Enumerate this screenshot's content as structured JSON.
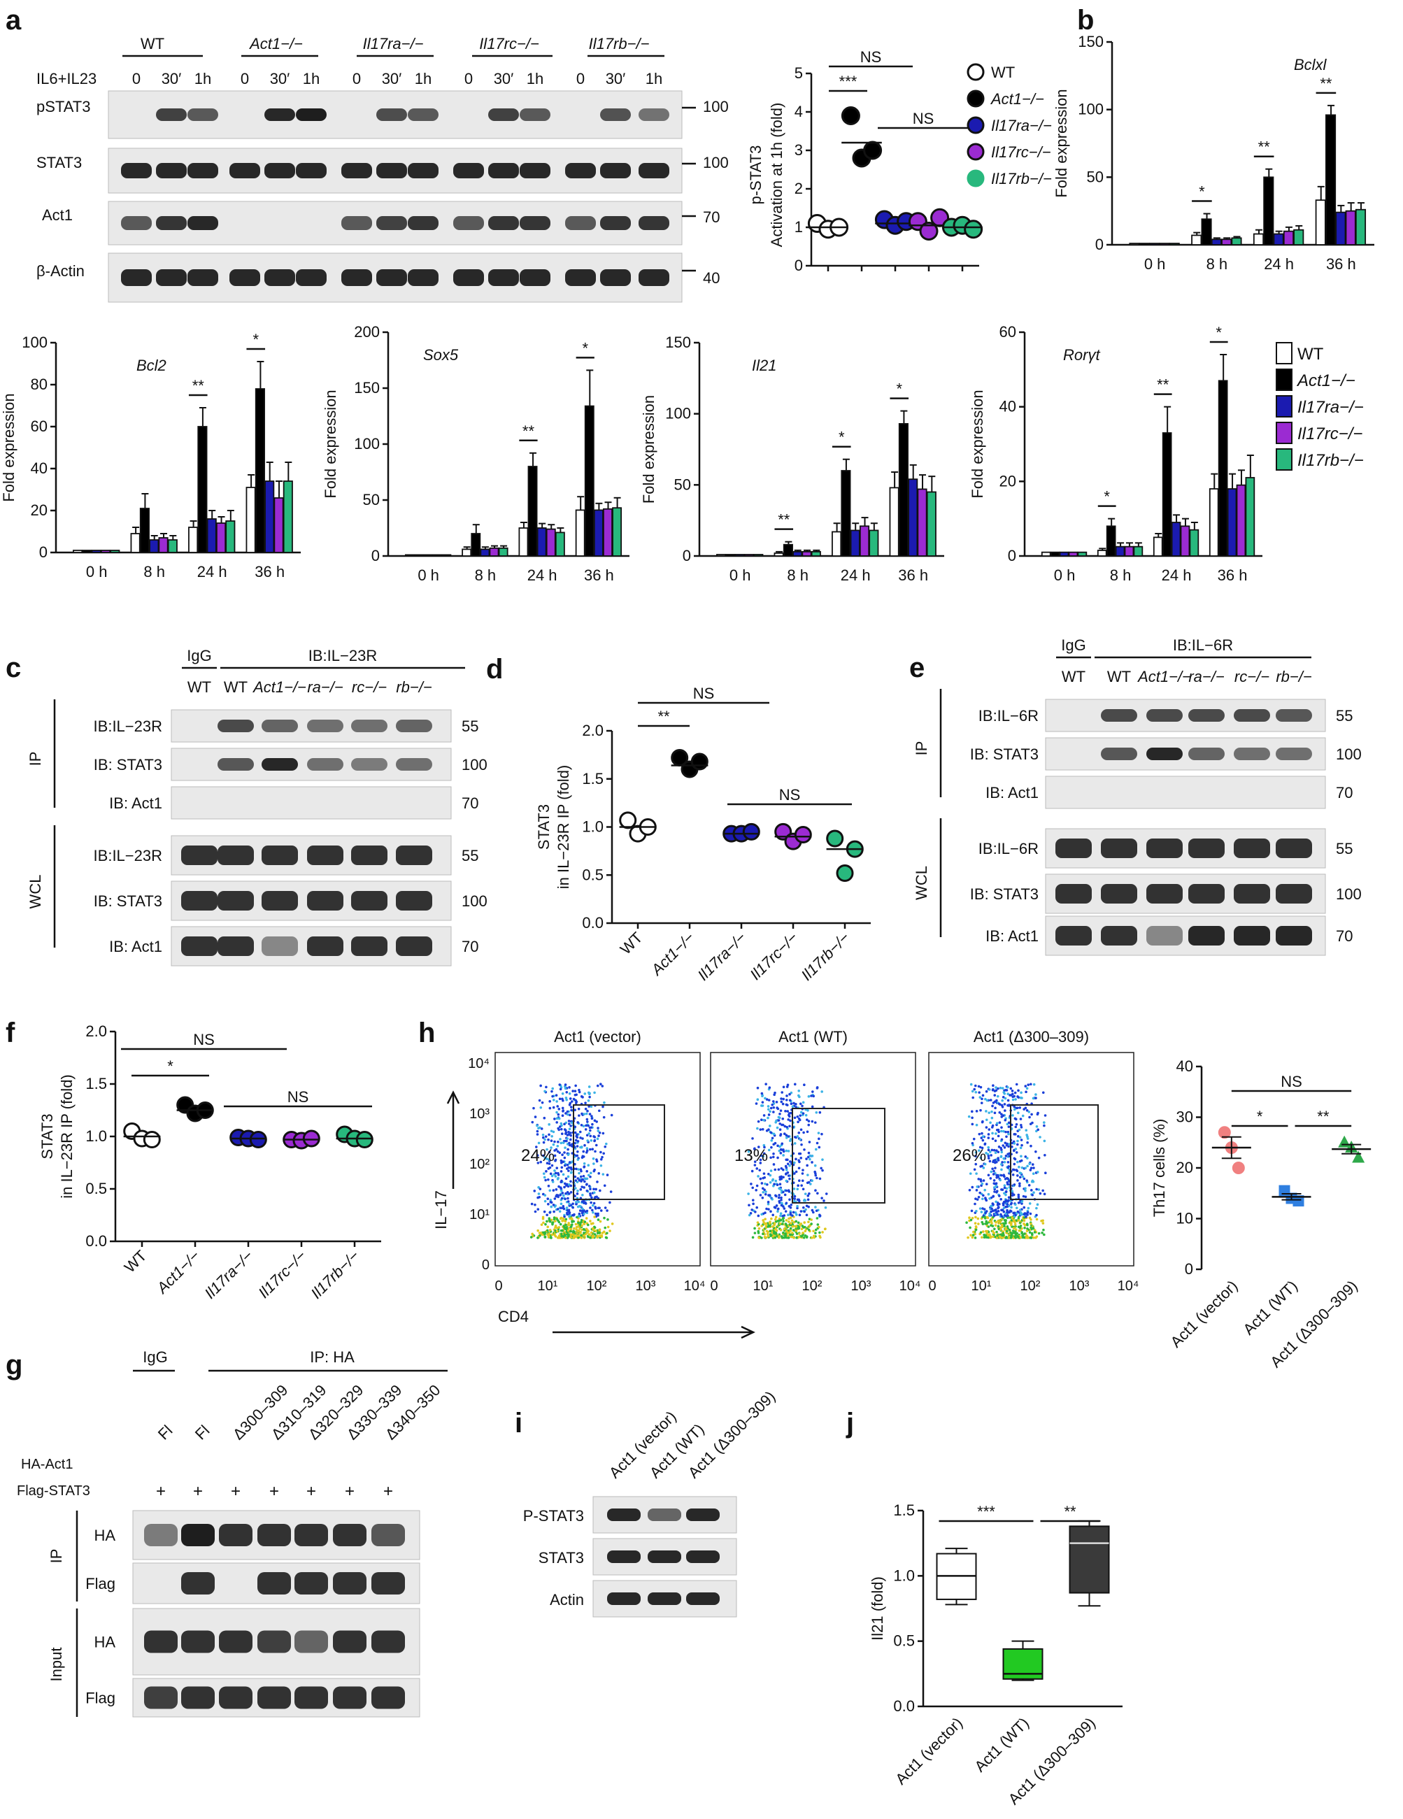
{
  "colors": {
    "WT": "#ffffff",
    "Act1": "#000000",
    "Il17ra": "#1b1bb0",
    "Il17rc": "#9b2bd2",
    "Il17rb": "#28b87d",
    "vector": "#f08080",
    "act1wt": "#2f7fe0",
    "delta": "#2ea84a",
    "box_vector": "#ffffff",
    "box_wt": "#22c922",
    "box_delta": "#3a3a3a"
  },
  "panel_a": {
    "letter": "a",
    "groups": [
      "WT",
      "Act1−/−",
      "Il17ra−/−",
      "Il17rc−/−",
      "Il17rb−/−"
    ],
    "treatment": "IL6+IL23",
    "times": [
      "0",
      "30′",
      "1h"
    ],
    "blot_rows": [
      "pSTAT3",
      "STAT3",
      "Act1",
      "β-Actin"
    ],
    "mw": [
      "100",
      "100",
      "70",
      "40"
    ]
  },
  "panel_a_scatter": {
    "ylabel1": "p-STAT3",
    "ylabel2": "Activation at 1h (fold)",
    "yticks": [
      "0",
      "1",
      "2",
      "3",
      "4",
      "5"
    ],
    "sig": [
      "***",
      "NS",
      "NS"
    ],
    "legend": [
      "WT",
      "Act1−/−",
      "Il17ra−/−",
      "Il17rc−/−",
      "Il17rb−/−"
    ]
  },
  "panel_b": {
    "letter": "b",
    "title": "Bclxl",
    "ylabel": "Fold expression",
    "yticks": [
      "0",
      "50",
      "100",
      "150"
    ],
    "sig": [
      "*",
      "**",
      "**"
    ]
  },
  "timepoints": [
    "0 h",
    "8 h",
    "24 h",
    "36 h"
  ],
  "row2": {
    "bcl2": {
      "title": "Bcl2",
      "ylabel": "Fold expression",
      "yticks": [
        "0",
        "20",
        "40",
        "60",
        "80",
        "100"
      ],
      "sig": [
        "**",
        "*"
      ]
    },
    "sox5": {
      "title": "Sox5",
      "ylabel": "Fold expression",
      "yticks": [
        "0",
        "50",
        "100",
        "150",
        "200"
      ],
      "sig": [
        "**",
        "*"
      ]
    },
    "il21": {
      "title": "Il21",
      "ylabel": "Fold expression",
      "yticks": [
        "0",
        "50",
        "100",
        "150"
      ],
      "sig": [
        "**",
        "*",
        "*"
      ]
    },
    "rorgt": {
      "title": "Rorγt",
      "ylabel": "Fold expression",
      "yticks": [
        "0",
        "20",
        "40",
        "60"
      ],
      "sig": [
        "*",
        "**",
        "*"
      ]
    },
    "legend": [
      "WT",
      "Act1−/−",
      "Il17ra−/−",
      "Il17rc−/−",
      "Il17rb−/−"
    ]
  },
  "panel_c": {
    "letter": "c",
    "head1": "IgG",
    "head2": "IB:IL−23R",
    "lanes": [
      "WT",
      "WT",
      "Act1−/−",
      "ra−/−",
      "rc−/−",
      "rb−/−"
    ],
    "side": [
      "IP",
      "WCL"
    ],
    "rows": [
      "IB:IL−23R",
      "IB: STAT3",
      "IB: Act1",
      "IB:IL−23R",
      "IB: STAT3",
      "IB: Act1"
    ],
    "mw": [
      "55",
      "100",
      "70",
      "55",
      "100",
      "70"
    ]
  },
  "panel_d": {
    "letter": "d",
    "ylabel1": "STAT3",
    "ylabel2": "in IL−23R IP (fold)",
    "yticks": [
      "0.0",
      "0.5",
      "1.0",
      "1.5",
      "2.0"
    ],
    "xlabels": [
      "WT",
      "Act1−/−",
      "Il17ra−/−",
      "Il17rc−/−",
      "Il17rb−/−"
    ],
    "sig": [
      "**",
      "NS",
      "NS"
    ]
  },
  "panel_e": {
    "letter": "e",
    "head1": "IgG",
    "head2": "IB:IL−6R",
    "lanes": [
      "WT",
      "WT",
      "Act1−/−",
      "ra−/−",
      "rc−/−",
      "rb−/−"
    ],
    "side": [
      "IP",
      "WCL"
    ],
    "rows": [
      "IB:IL−6R",
      "IB: STAT3",
      "IB: Act1",
      "IB:IL−6R",
      "IB: STAT3",
      "IB: Act1"
    ],
    "mw": [
      "55",
      "100",
      "70",
      "55",
      "100",
      "70"
    ]
  },
  "panel_f": {
    "letter": "f",
    "ylabel1": "STAT3",
    "ylabel2": "in IL−23R IP (fold)",
    "yticks": [
      "0.0",
      "0.5",
      "1.0",
      "1.5",
      "2.0"
    ],
    "xlabels": [
      "WT",
      "Act1−/−",
      "Il17ra−/−",
      "Il17rc−/−",
      "Il17rb−/−"
    ],
    "sig": [
      "*",
      "NS",
      "NS"
    ]
  },
  "panel_h": {
    "letter": "h",
    "titles": [
      "Act1 (vector)",
      "Act1 (WT)",
      "Act1 (Δ300–309)"
    ],
    "percents": [
      "24%",
      "13%",
      "26%"
    ],
    "ylabel": "IL−17",
    "xlabel": "CD4",
    "yticks": [
      "0",
      "10¹",
      "10²",
      "10³",
      "10⁴"
    ],
    "xticks": [
      "0",
      "10¹",
      "10²",
      "10³",
      "10⁴"
    ]
  },
  "panel_h_scatter": {
    "ylabel": "Th17 cells (%)",
    "yticks": [
      "0",
      "10",
      "20",
      "30",
      "40"
    ],
    "xlabels": [
      "Act1 (vector)",
      "Act1 (WT)",
      "Act1 (Δ300–309)"
    ],
    "sig": [
      "NS",
      "*",
      "**"
    ]
  },
  "panel_g": {
    "letter": "g",
    "head1": "IgG",
    "head2": "IP: HA",
    "lanes": [
      "Fl",
      "Fl",
      "Δ300–309",
      "Δ310–319",
      "Δ320–329",
      "Δ330–339",
      "Δ340–350"
    ],
    "row_labels": [
      "HA-Act1",
      "Flag-STAT3"
    ],
    "plus": "+",
    "side": [
      "IP",
      "Input"
    ],
    "rows": [
      "HA",
      "Flag",
      "HA",
      "Flag"
    ]
  },
  "panel_i": {
    "letter": "i",
    "lanes": [
      "Act1 (vector)",
      "Act1 (WT)",
      "Act1 (Δ300–309)"
    ],
    "rows": [
      "P-STAT3",
      "STAT3",
      "Actin"
    ]
  },
  "panel_j": {
    "letter": "j",
    "ylabel": "Il21 (fold)",
    "yticks": [
      "0.0",
      "0.5",
      "1.0",
      "1.5"
    ],
    "xlabels": [
      "Act1 (vector)",
      "Act1 (WT)",
      "Act1 (Δ300–309)"
    ],
    "sig": [
      "***",
      "**"
    ]
  },
  "chart_data": [
    {
      "type": "scatter",
      "title": "p-STAT3 activation at 1h (fold)",
      "categories": [
        "WT",
        "Act1−/−",
        "Il17ra−/−",
        "Il17rc−/−",
        "Il17rb−/−"
      ],
      "values": [
        [
          1.1,
          0.95,
          1.0
        ],
        [
          3.9,
          2.8,
          3.0
        ],
        [
          1.2,
          1.05,
          1.15
        ],
        [
          1.15,
          0.9,
          1.25
        ],
        [
          1.0,
          1.05,
          0.95
        ]
      ],
      "means": [
        1.0,
        3.2,
        1.1,
        1.05,
        1.0
      ],
      "ylim": [
        0,
        5
      ]
    },
    {
      "type": "bar",
      "title": "Bclxl",
      "ylabel": "Fold expression",
      "ylim": [
        0,
        150
      ],
      "categories": [
        "0 h",
        "8 h",
        "24 h",
        "36 h"
      ],
      "series": [
        {
          "name": "WT",
          "values": [
            1,
            7,
            8,
            33
          ],
          "err": [
            0,
            2,
            3,
            10
          ]
        },
        {
          "name": "Act1−/−",
          "values": [
            1,
            19,
            50,
            96
          ],
          "err": [
            0,
            4,
            6,
            7
          ]
        },
        {
          "name": "Il17ra−/−",
          "values": [
            1,
            4,
            8,
            24
          ],
          "err": [
            0,
            1,
            2,
            5
          ]
        },
        {
          "name": "Il17rc−/−",
          "values": [
            1,
            4,
            10,
            25
          ],
          "err": [
            0,
            1,
            3,
            6
          ]
        },
        {
          "name": "Il17rb−/−",
          "values": [
            1,
            5,
            11,
            26
          ],
          "err": [
            0,
            1,
            3,
            5
          ]
        }
      ]
    },
    {
      "type": "bar",
      "title": "Bcl2",
      "ylabel": "Fold expression",
      "ylim": [
        0,
        100
      ],
      "categories": [
        "0 h",
        "8 h",
        "24 h",
        "36 h"
      ],
      "series": [
        {
          "name": "WT",
          "values": [
            1,
            9,
            12,
            31
          ],
          "err": [
            0,
            3,
            3,
            6
          ]
        },
        {
          "name": "Act1−/−",
          "values": [
            1,
            21,
            60,
            78
          ],
          "err": [
            0,
            7,
            9,
            13
          ]
        },
        {
          "name": "Il17ra−/−",
          "values": [
            1,
            6,
            16,
            34
          ],
          "err": [
            0,
            2,
            4,
            9
          ]
        },
        {
          "name": "Il17rc−/−",
          "values": [
            1,
            7,
            14,
            26
          ],
          "err": [
            0,
            2,
            3,
            8
          ]
        },
        {
          "name": "Il17rb−/−",
          "values": [
            1,
            6,
            15,
            34
          ],
          "err": [
            0,
            2,
            5,
            9
          ]
        }
      ]
    },
    {
      "type": "bar",
      "title": "Sox5",
      "ylabel": "Fold expression",
      "ylim": [
        0,
        200
      ],
      "categories": [
        "0 h",
        "8 h",
        "24 h",
        "36 h"
      ],
      "series": [
        {
          "name": "WT",
          "values": [
            1,
            6,
            25,
            41
          ],
          "err": [
            0,
            2,
            5,
            12
          ]
        },
        {
          "name": "Act1−/−",
          "values": [
            1,
            20,
            80,
            134
          ],
          "err": [
            0,
            8,
            12,
            32
          ]
        },
        {
          "name": "Il17ra−/−",
          "values": [
            1,
            6,
            25,
            41
          ],
          "err": [
            0,
            2,
            4,
            6
          ]
        },
        {
          "name": "Il17rc−/−",
          "values": [
            1,
            7,
            24,
            42
          ],
          "err": [
            0,
            2,
            4,
            6
          ]
        },
        {
          "name": "Il17rb−/−",
          "values": [
            1,
            7,
            21,
            43
          ],
          "err": [
            0,
            2,
            4,
            9
          ]
        }
      ]
    },
    {
      "type": "bar",
      "title": "Il21",
      "ylabel": "Fold expression",
      "ylim": [
        0,
        150
      ],
      "categories": [
        "0 h",
        "8 h",
        "24 h",
        "36 h"
      ],
      "series": [
        {
          "name": "WT",
          "values": [
            1,
            2,
            17,
            48
          ],
          "err": [
            0,
            1,
            6,
            11
          ]
        },
        {
          "name": "Act1−/−",
          "values": [
            1,
            8,
            60,
            93
          ],
          "err": [
            0,
            2,
            8,
            9
          ]
        },
        {
          "name": "Il17ra−/−",
          "values": [
            1,
            3,
            18,
            54
          ],
          "err": [
            0,
            1,
            5,
            10
          ]
        },
        {
          "name": "Il17rc−/−",
          "values": [
            1,
            3,
            21,
            47
          ],
          "err": [
            0,
            1,
            6,
            10
          ]
        },
        {
          "name": "Il17rb−/−",
          "values": [
            1,
            3,
            18,
            45
          ],
          "err": [
            0,
            1,
            5,
            11
          ]
        }
      ]
    },
    {
      "type": "bar",
      "title": "Rorγt",
      "ylabel": "Fold expression",
      "ylim": [
        0,
        60
      ],
      "categories": [
        "0 h",
        "8 h",
        "24 h",
        "36 h"
      ],
      "series": [
        {
          "name": "WT",
          "values": [
            1,
            1.5,
            5,
            18
          ],
          "err": [
            0,
            0.5,
            1,
            4
          ]
        },
        {
          "name": "Act1−/−",
          "values": [
            1,
            8,
            33,
            47
          ],
          "err": [
            0,
            2,
            7,
            7
          ]
        },
        {
          "name": "Il17ra−/−",
          "values": [
            1,
            2.5,
            9,
            18
          ],
          "err": [
            0,
            1,
            2,
            4
          ]
        },
        {
          "name": "Il17rc−/−",
          "values": [
            1,
            2.5,
            8,
            19
          ],
          "err": [
            0,
            1,
            2,
            4
          ]
        },
        {
          "name": "Il17rb−/−",
          "values": [
            1,
            2.5,
            7,
            21
          ],
          "err": [
            0,
            1,
            2,
            6
          ]
        }
      ]
    },
    {
      "type": "scatter",
      "title": "STAT3 in IL−23R IP (fold) (d)",
      "categories": [
        "WT",
        "Act1−/−",
        "Il17ra−/−",
        "Il17rc−/−",
        "Il17rb−/−"
      ],
      "values": [
        [
          1.07,
          0.93,
          1.0
        ],
        [
          1.72,
          1.6,
          1.68
        ],
        [
          0.93,
          0.93,
          0.95
        ],
        [
          0.95,
          0.85,
          0.92
        ],
        [
          0.88,
          0.52,
          0.77
        ]
      ],
      "means": [
        1.0,
        1.64,
        0.93,
        0.9,
        0.77
      ],
      "ylim": [
        0,
        2.0
      ]
    },
    {
      "type": "scatter",
      "title": "STAT3 in IL−23R IP (fold) (f)",
      "categories": [
        "WT",
        "Act1−/−",
        "Il17ra−/−",
        "Il17rc−/−",
        "Il17rb−/−"
      ],
      "values": [
        [
          1.05,
          0.98,
          0.97
        ],
        [
          1.3,
          1.22,
          1.25
        ],
        [
          0.99,
          0.98,
          0.97
        ],
        [
          0.97,
          0.96,
          0.98
        ],
        [
          1.02,
          0.98,
          0.97
        ]
      ],
      "means": [
        1.0,
        1.25,
        0.98,
        0.97,
        0.98
      ],
      "ylim": [
        0,
        2.0
      ]
    },
    {
      "type": "scatter",
      "title": "Th17 cells (%)",
      "categories": [
        "Act1 (vector)",
        "Act1 (WT)",
        "Act1 (Δ300–309)"
      ],
      "values": [
        [
          27,
          24,
          20
        ],
        [
          15.5,
          14,
          13.5
        ],
        [
          25,
          24,
          22
        ]
      ],
      "means": [
        24,
        14.3,
        23.7
      ],
      "sem": [
        2.1,
        0.6,
        0.9
      ],
      "ylim": [
        0,
        40
      ]
    },
    {
      "type": "box",
      "title": "Il21 (fold)",
      "categories": [
        "Act1 (vector)",
        "Act1 (WT)",
        "Act1 (Δ300–309)"
      ],
      "boxes": [
        {
          "min": 0.78,
          "q1": 0.82,
          "median": 1.0,
          "q3": 1.17,
          "max": 1.21
        },
        {
          "min": 0.2,
          "q1": 0.21,
          "median": 0.25,
          "q3": 0.44,
          "max": 0.5
        },
        {
          "min": 0.77,
          "q1": 0.87,
          "median": 1.25,
          "q3": 1.38,
          "max": 1.42
        }
      ],
      "ylim": [
        0,
        1.5
      ]
    }
  ]
}
